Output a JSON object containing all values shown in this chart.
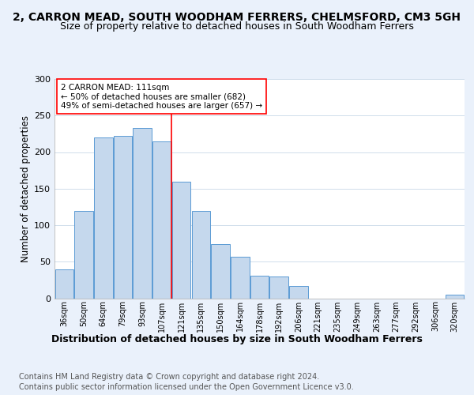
{
  "title1": "2, CARRON MEAD, SOUTH WOODHAM FERRERS, CHELMSFORD, CM3 5GH",
  "title2": "Size of property relative to detached houses in South Woodham Ferrers",
  "xlabel": "Distribution of detached houses by size in South Woodham Ferrers",
  "ylabel": "Number of detached properties",
  "footer1": "Contains HM Land Registry data © Crown copyright and database right 2024.",
  "footer2": "Contains public sector information licensed under the Open Government Licence v3.0.",
  "bar_labels": [
    "36sqm",
    "50sqm",
    "64sqm",
    "79sqm",
    "93sqm",
    "107sqm",
    "121sqm",
    "135sqm",
    "150sqm",
    "164sqm",
    "178sqm",
    "192sqm",
    "206sqm",
    "221sqm",
    "235sqm",
    "249sqm",
    "263sqm",
    "277sqm",
    "292sqm",
    "306sqm",
    "320sqm"
  ],
  "bar_values": [
    40,
    120,
    220,
    222,
    233,
    215,
    160,
    120,
    74,
    57,
    31,
    30,
    17,
    0,
    0,
    0,
    0,
    0,
    0,
    0,
    5
  ],
  "bar_color": "#c5d8ed",
  "bar_edge_color": "#5b9bd5",
  "annotation_text": "2 CARRON MEAD: 111sqm\n← 50% of detached houses are smaller (682)\n49% of semi-detached houses are larger (657) →",
  "vline_color": "red",
  "vline_x_index": 5,
  "ylim": [
    0,
    300
  ],
  "yticks": [
    0,
    50,
    100,
    150,
    200,
    250,
    300
  ],
  "bg_color": "#eaf1fb",
  "plot_bg_color": "white",
  "title1_fontsize": 10,
  "title2_fontsize": 9,
  "xlabel_fontsize": 9,
  "ylabel_fontsize": 8.5,
  "footer_fontsize": 7
}
